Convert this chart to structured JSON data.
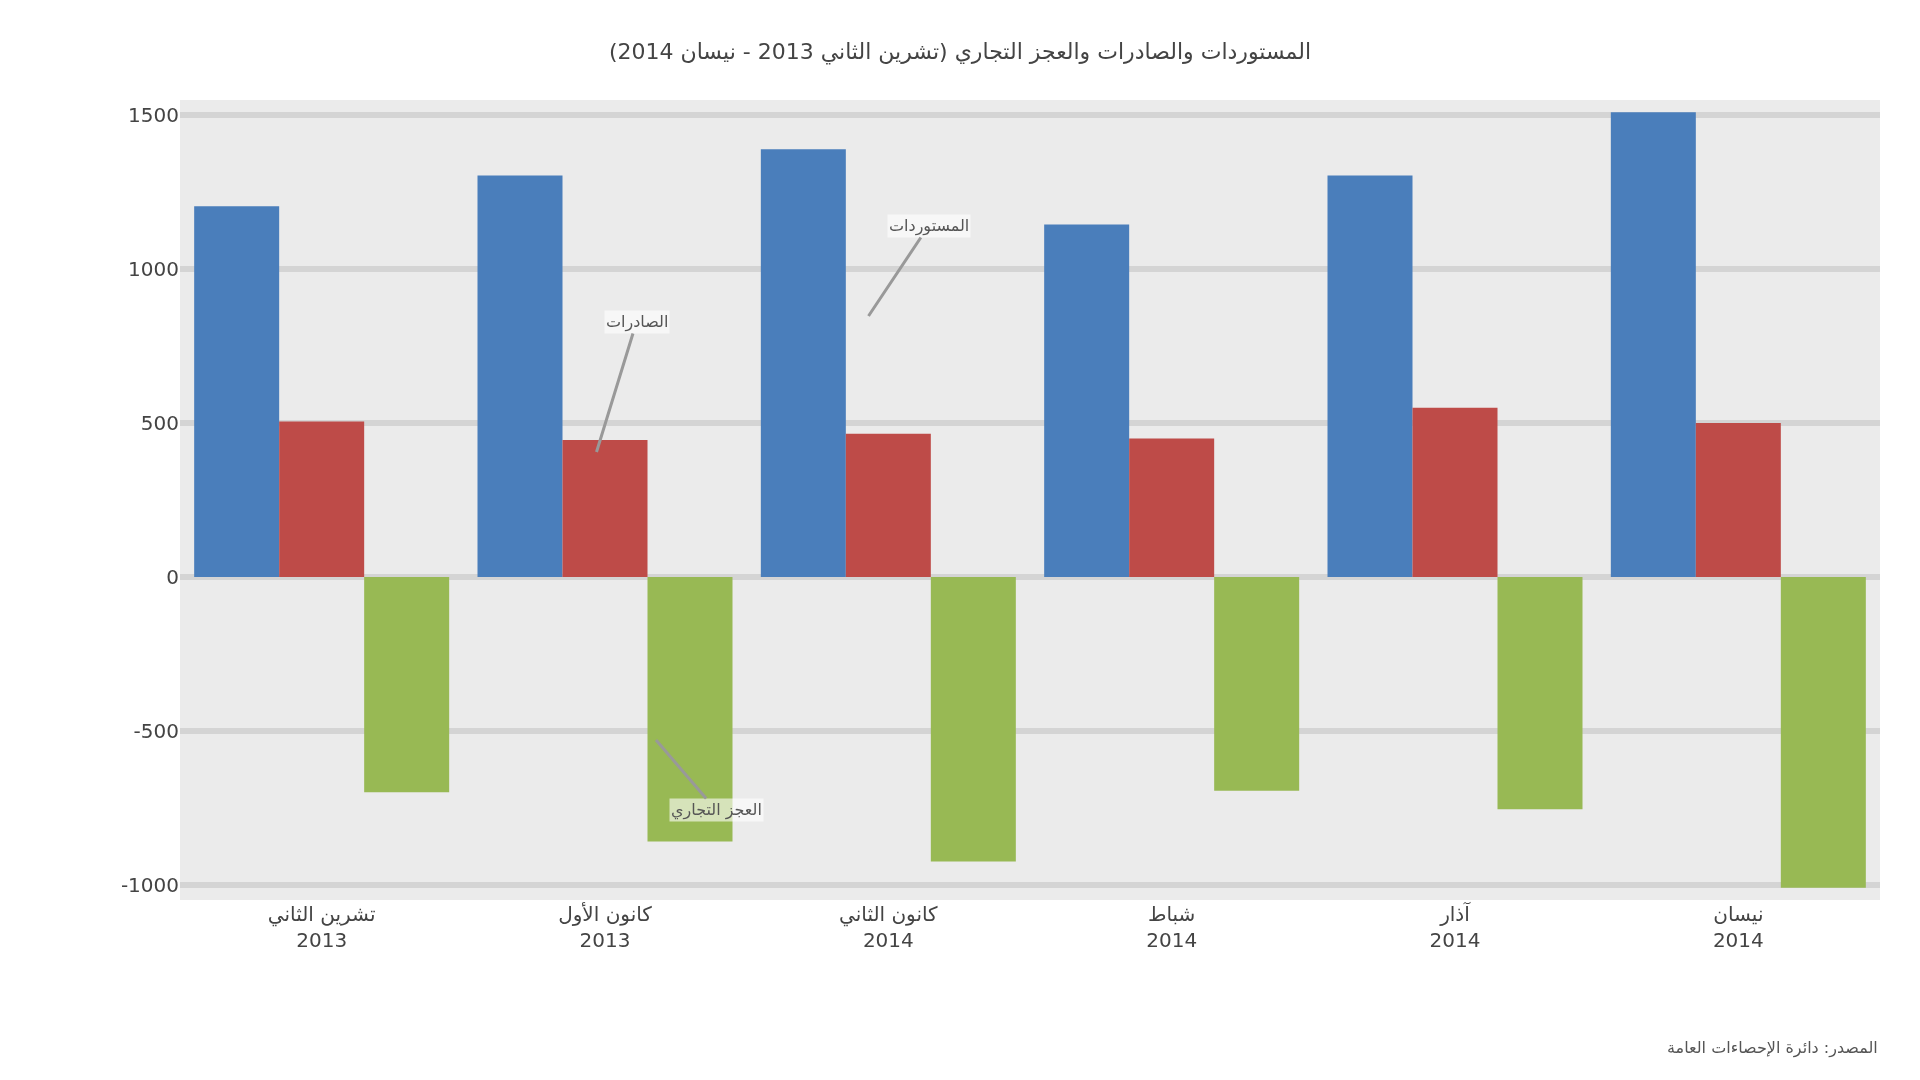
{
  "chart_data": {
    "type": "bar",
    "title": "المستوردات والصادرات والعجز التجاري (تشرين الثاني 2013 - نيسان 2014)",
    "categories": [
      "تشرين الثاني 2013",
      "كانون الأول 2013",
      "كانون الثاني 2014",
      "شباط 2014",
      "آذار 2014",
      "نيسان 2014"
    ],
    "series": [
      {
        "color": "#4a7ebb",
        "values": [
          1205,
          1305,
          1390,
          1145,
          1305,
          1510
        ]
      },
      {
        "color": "#be4b48",
        "values": [
          505,
          445,
          465,
          450,
          550,
          500
        ]
      },
      {
        "color": "#98b954",
        "values": [
          -700,
          -860,
          -925,
          -695,
          -755,
          -1010
        ]
      }
    ],
    "ylim": [
      -1050,
      1550
    ],
    "yticks": [
      -1000,
      -500,
      0,
      500,
      1000,
      1500
    ],
    "grid": "y",
    "annotations": [
      "المستوردات",
      "الصادرات",
      "العجز التجاري",
      "المصدر: دائرة الإحصاءات العامة"
    ]
  }
}
